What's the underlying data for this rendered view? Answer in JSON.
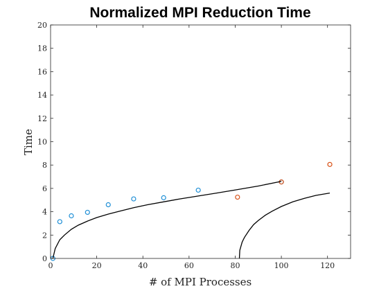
{
  "chart_data": {
    "type": "scatter",
    "title": "Normalized MPI Reduction Time",
    "xlabel": "# of MPI Processes",
    "ylabel": "Time",
    "xlim": [
      0,
      130
    ],
    "ylim": [
      0,
      20
    ],
    "xticks": [
      0,
      20,
      40,
      60,
      80,
      100,
      120
    ],
    "yticks": [
      0,
      2,
      4,
      6,
      8,
      10,
      12,
      14,
      16,
      18,
      20
    ],
    "grid": false,
    "series": [
      {
        "kind": "points",
        "color": "#1f8fd6",
        "points": [
          [
            1,
            0
          ],
          [
            4,
            3.15
          ],
          [
            9,
            3.65
          ],
          [
            16,
            3.95
          ],
          [
            25,
            4.6
          ],
          [
            36,
            5.1
          ],
          [
            49,
            5.2
          ],
          [
            64,
            5.85
          ],
          [
            100,
            6.55
          ]
        ]
      },
      {
        "kind": "points",
        "color": "#d95319",
        "points": [
          [
            81,
            5.25
          ],
          [
            100,
            6.55
          ],
          [
            121,
            8.05
          ]
        ]
      },
      {
        "kind": "line",
        "color": "#000000",
        "points": [
          [
            1,
            0
          ],
          [
            2,
            0.85
          ],
          [
            4,
            1.6
          ],
          [
            6,
            2.0
          ],
          [
            9,
            2.5
          ],
          [
            12,
            2.85
          ],
          [
            16,
            3.2
          ],
          [
            20,
            3.5
          ],
          [
            25,
            3.8
          ],
          [
            30,
            4.05
          ],
          [
            36,
            4.35
          ],
          [
            42,
            4.6
          ],
          [
            49,
            4.85
          ],
          [
            56,
            5.1
          ],
          [
            64,
            5.35
          ],
          [
            72,
            5.6
          ],
          [
            81,
            5.9
          ],
          [
            90,
            6.2
          ],
          [
            100,
            6.6
          ]
        ]
      },
      {
        "kind": "line",
        "color": "#000000",
        "points": [
          [
            81.8,
            0
          ],
          [
            82,
            0.7
          ],
          [
            83,
            1.4
          ],
          [
            84,
            1.8
          ],
          [
            86,
            2.4
          ],
          [
            88,
            2.9
          ],
          [
            90,
            3.25
          ],
          [
            93,
            3.7
          ],
          [
            96,
            4.05
          ],
          [
            100,
            4.45
          ],
          [
            105,
            4.85
          ],
          [
            110,
            5.15
          ],
          [
            115,
            5.4
          ],
          [
            121,
            5.6
          ]
        ]
      }
    ]
  }
}
